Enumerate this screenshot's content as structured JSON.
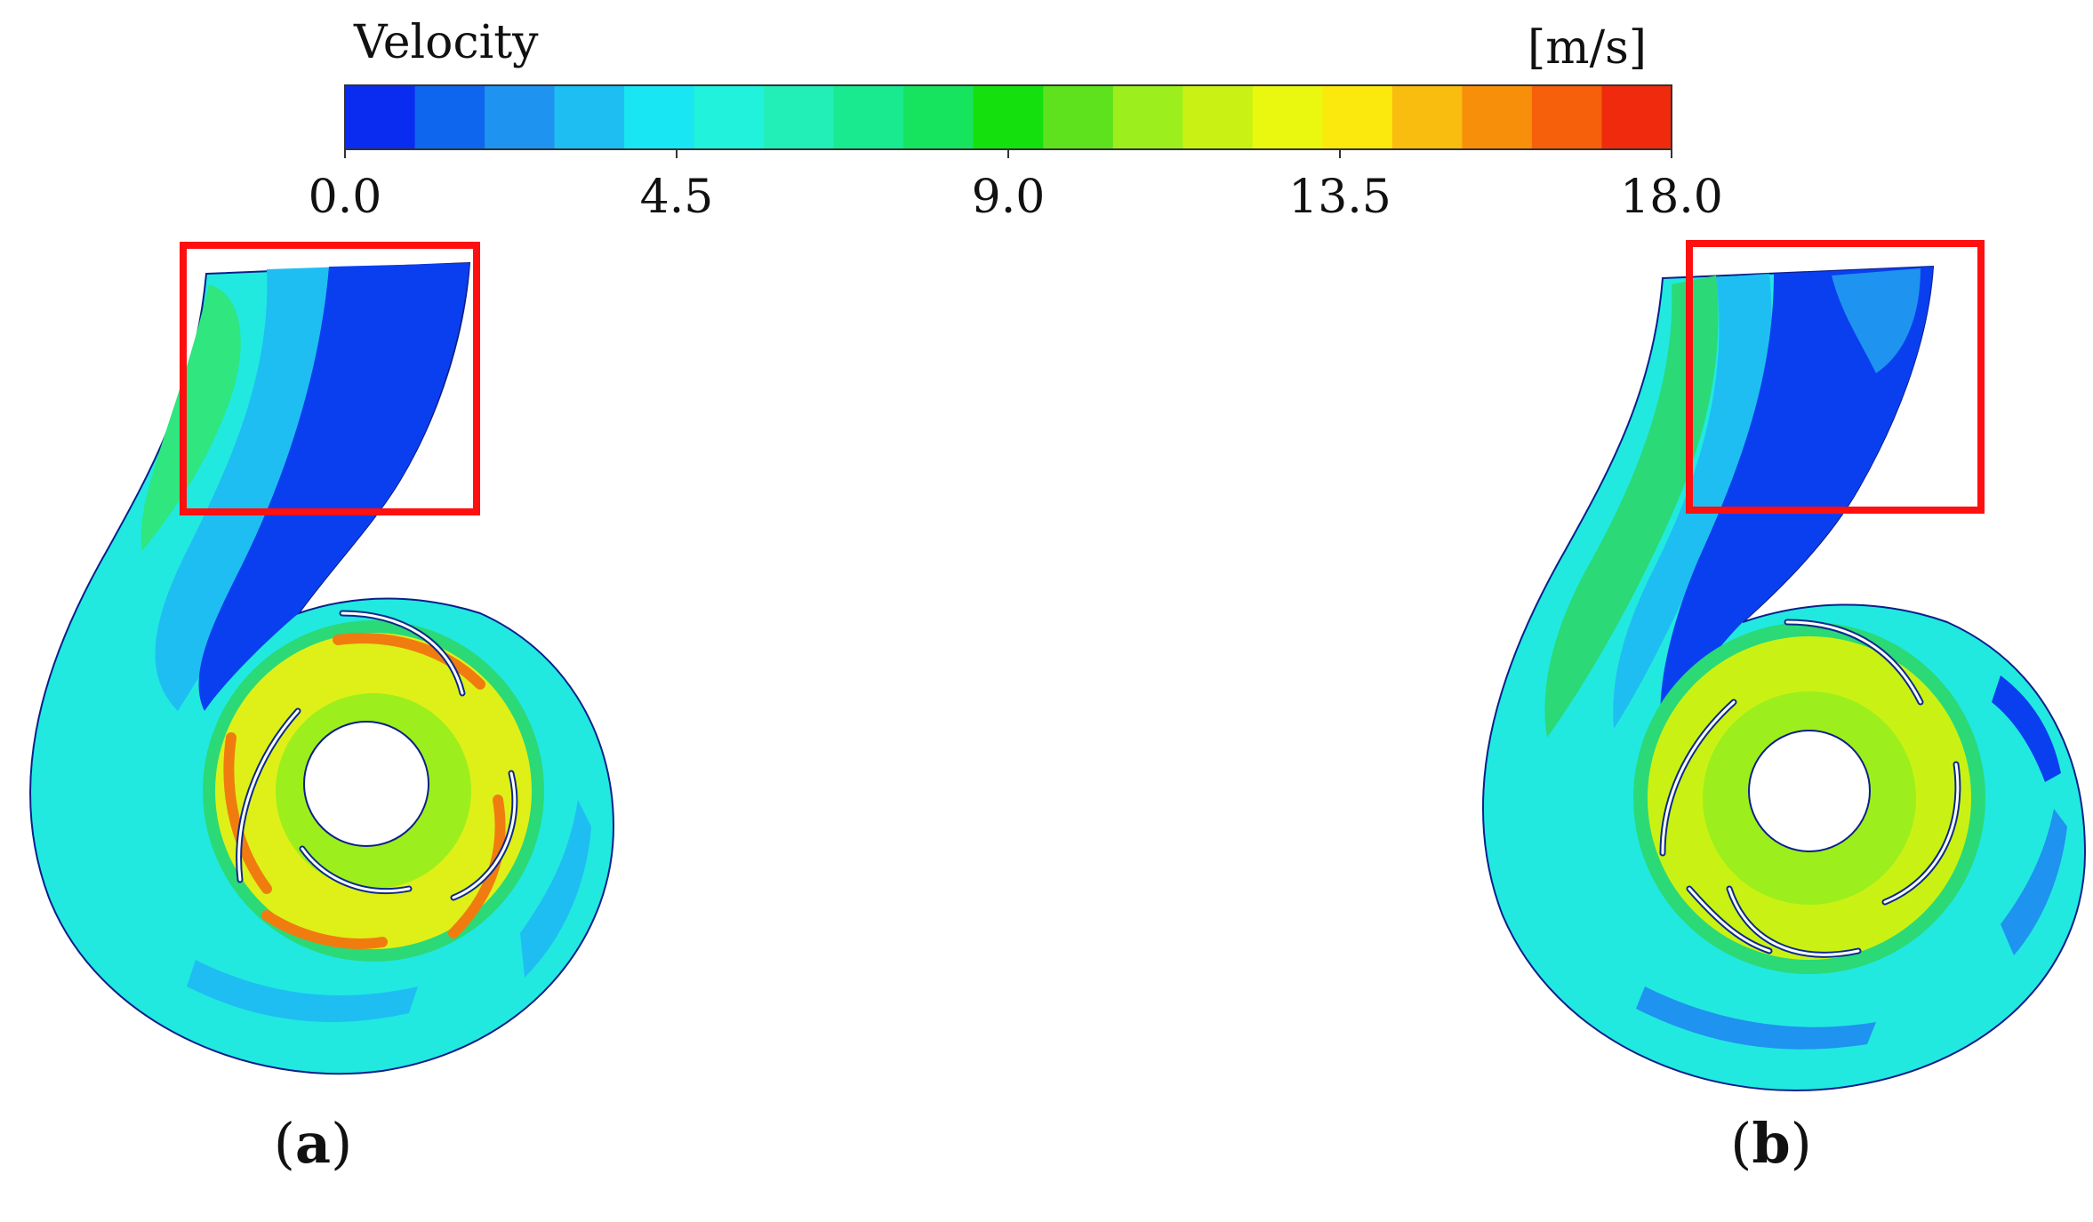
{
  "legend": {
    "title": "Velocity",
    "unit": "[m/s]",
    "ticks": [
      "0.0",
      "4.5",
      "9.0",
      "13.5",
      "18.0"
    ],
    "colors": [
      "#0a2bf0",
      "#0f66ee",
      "#1e93ef",
      "#1fbef2",
      "#18e6f3",
      "#20f2dc",
      "#22eeb8",
      "#19e98f",
      "#16e35e",
      "#14e00e",
      "#5ee21e",
      "#9cef1c",
      "#c9f214",
      "#eaf70f",
      "#fbe80d",
      "#f9bd10",
      "#f88f0a",
      "#f6600a",
      "#f02a0c"
    ]
  },
  "panels": [
    {
      "id": "a",
      "label_open": "(",
      "label_letter": "a",
      "label_close": ")"
    },
    {
      "id": "b",
      "label_open": "(",
      "label_letter": "b",
      "label_close": ")"
    }
  ],
  "colors": {
    "highlight": "#ff1010",
    "low": "#0a3ff0",
    "medium": "#18e6f3",
    "high": "#f0e614",
    "peak": "#f06a10"
  }
}
